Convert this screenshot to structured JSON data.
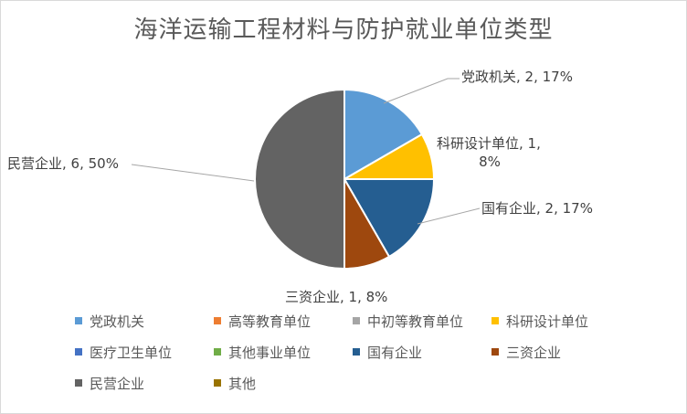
{
  "chart_data": {
    "type": "pie",
    "title": "海洋运输工程材料与防护就业单位类型",
    "legend_position": "bottom",
    "legend": [
      {
        "name": "党政机关",
        "color": "#5b9bd5"
      },
      {
        "name": "高等教育单位",
        "color": "#ed7d31"
      },
      {
        "name": "中初等教育单位",
        "color": "#a5a5a5"
      },
      {
        "name": "科研设计单位",
        "color": "#ffc000"
      },
      {
        "name": "医疗卫生单位",
        "color": "#4472c4"
      },
      {
        "name": "其他事业单位",
        "color": "#70ad47"
      },
      {
        "name": "国有企业",
        "color": "#255e91"
      },
      {
        "name": "三资企业",
        "color": "#9e480e"
      },
      {
        "name": "民营企业",
        "color": "#636363"
      },
      {
        "name": "其他",
        "color": "#997300"
      }
    ],
    "slices": [
      {
        "name": "党政机关",
        "value": 2,
        "percent": "17%",
        "color": "#5b9bd5",
        "label": "党政机关, 2, 17%"
      },
      {
        "name": "科研设计单位",
        "value": 1,
        "percent": "8%",
        "color": "#ffc000",
        "label_lines": [
          "科研设计单位, 1,",
          "8%"
        ]
      },
      {
        "name": "国有企业",
        "value": 2,
        "percent": "17%",
        "color": "#255e91",
        "label": "国有企业, 2, 17%"
      },
      {
        "name": "三资企业",
        "value": 1,
        "percent": "8%",
        "color": "#9e480e",
        "label": "三资企业, 1, 8%"
      },
      {
        "name": "民营企业",
        "value": 6,
        "percent": "50%",
        "color": "#636363",
        "label": "民营企业, 6, 50%"
      }
    ]
  }
}
